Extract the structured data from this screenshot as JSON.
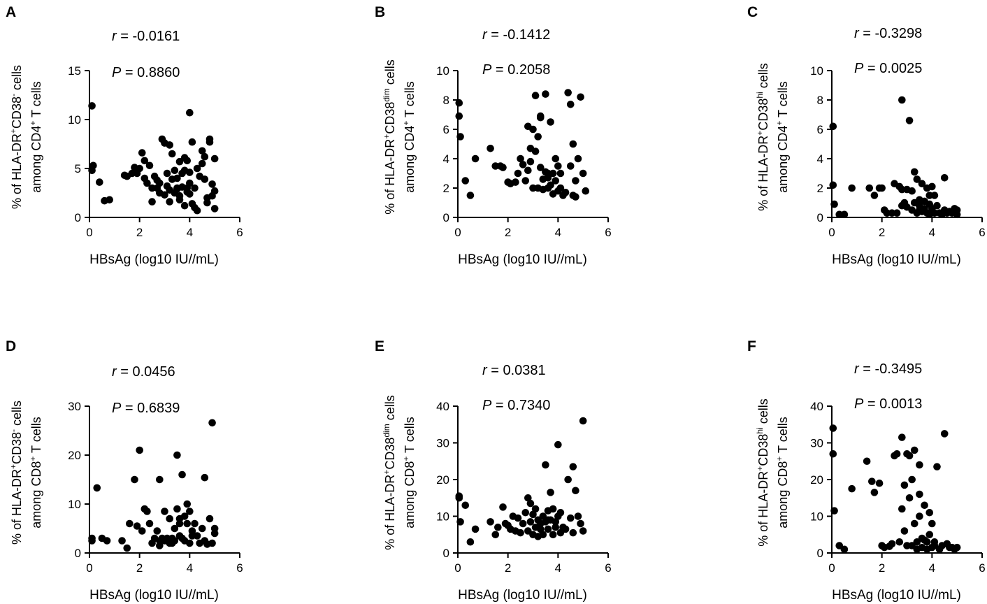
{
  "chart_data": [
    {
      "type": "scatter",
      "panel": "A",
      "r_label": "r",
      "r_value": "-0.0161",
      "p_label": "P",
      "p_value": "0.8860",
      "ylabel_line1": "% of HLA-DR",
      "ylabel_sup1": "+",
      "ylabel_mid": "CD38",
      "ylabel_sup2": "-",
      "ylabel_tail": " cells",
      "ylabel_line2": "among CD4",
      "ylabel_sup3": "+",
      "ylabel_line2_tail": " T cells",
      "xlabel": "HBsAg (log10 IU//mL)",
      "xlim": [
        0,
        6
      ],
      "ylim": [
        0,
        15
      ],
      "xticks": [
        "0",
        "2",
        "4",
        "6"
      ],
      "yticks": [
        "0",
        "5",
        "10",
        "15"
      ],
      "x": [
        0.1,
        0.1,
        0.15,
        0.4,
        0.6,
        0.8,
        1.4,
        1.5,
        1.7,
        1.8,
        1.9,
        2.0,
        2.1,
        2.2,
        2.3,
        2.4,
        2.5,
        2.5,
        2.6,
        2.7,
        2.7,
        2.8,
        2.8,
        2.9,
        3.0,
        3.0,
        3.1,
        3.1,
        3.2,
        3.2,
        3.2,
        3.3,
        3.3,
        3.4,
        3.4,
        3.5,
        3.5,
        3.6,
        3.6,
        3.6,
        3.7,
        3.7,
        3.8,
        3.8,
        3.8,
        3.9,
        3.9,
        4.0,
        4.0,
        4.0,
        4.0,
        4.1,
        4.1,
        4.2,
        4.2,
        4.3,
        4.4,
        4.5,
        4.5,
        4.6,
        4.6,
        4.7,
        4.7,
        4.8,
        4.8,
        4.9,
        4.9,
        5.0,
        5.0,
        5.0,
        4.3,
        3.9,
        3.5,
        2.2
      ],
      "y": [
        11.4,
        4.8,
        5.3,
        3.6,
        1.7,
        1.8,
        4.3,
        4.2,
        4.5,
        5.1,
        4.5,
        5.0,
        6.6,
        4.0,
        3.5,
        5.3,
        3.0,
        1.6,
        4.2,
        3.8,
        3.0,
        3.5,
        2.5,
        8.0,
        2.3,
        7.6,
        4.5,
        3.2,
        7.4,
        2.8,
        1.6,
        6.5,
        3.9,
        2.5,
        4.8,
        4.0,
        3.0,
        1.8,
        5.7,
        2.2,
        4.5,
        3.1,
        6.1,
        4.8,
        1.2,
        3.0,
        5.8,
        10.7,
        4.6,
        3.5,
        2.4,
        7.7,
        1.4,
        3.0,
        1.0,
        0.7,
        4.2,
        6.8,
        5.5,
        6.2,
        3.9,
        1.5,
        2.0,
        8.0,
        7.7,
        3.4,
        2.2,
        2.7,
        6.0,
        0.9,
        5.0,
        2.6,
        2.9,
        5.8
      ]
    },
    {
      "type": "scatter",
      "panel": "B",
      "r_label": "r",
      "r_value": "-0.1412",
      "p_label": "P",
      "p_value": "0.2058",
      "ylabel_line1": "% of HLA-DR",
      "ylabel_sup1": "+",
      "ylabel_mid": "CD38",
      "ylabel_sup2": "dim",
      "ylabel_tail": " cells",
      "ylabel_line2": "among CD4",
      "ylabel_sup3": "+",
      "ylabel_line2_tail": " T cells",
      "xlabel": "HBsAg (log10 IU//mL)",
      "xlim": [
        0,
        6
      ],
      "ylim": [
        0,
        10
      ],
      "xticks": [
        "0",
        "2",
        "4",
        "6"
      ],
      "yticks": [
        "0",
        "2",
        "4",
        "6",
        "8",
        "10"
      ],
      "x": [
        0.05,
        0.05,
        0.1,
        0.3,
        0.5,
        0.7,
        1.3,
        1.5,
        1.7,
        1.8,
        2.0,
        2.1,
        2.3,
        2.4,
        2.5,
        2.6,
        2.7,
        2.8,
        2.8,
        2.9,
        3.0,
        3.0,
        3.1,
        3.1,
        3.2,
        3.2,
        3.3,
        3.3,
        3.4,
        3.4,
        3.5,
        3.5,
        3.6,
        3.6,
        3.7,
        3.7,
        3.8,
        3.8,
        3.9,
        3.9,
        4.0,
        4.0,
        4.1,
        4.1,
        4.2,
        4.3,
        4.4,
        4.5,
        4.5,
        4.6,
        4.6,
        4.7,
        4.7,
        4.8,
        4.9,
        5.0,
        5.1,
        3.3,
        3.6,
        2.9
      ],
      "y": [
        7.8,
        6.9,
        5.5,
        2.5,
        1.5,
        4.0,
        4.7,
        3.5,
        3.5,
        3.4,
        2.4,
        2.3,
        2.4,
        3.0,
        4.0,
        3.6,
        2.5,
        6.2,
        3.2,
        3.8,
        2.0,
        6.0,
        8.3,
        4.5,
        2.0,
        5.5,
        6.8,
        3.4,
        2.6,
        1.9,
        8.4,
        3.1,
        2.7,
        2.0,
        6.5,
        2.2,
        3.0,
        1.6,
        4.0,
        2.5,
        3.5,
        1.8,
        2.0,
        3.0,
        1.5,
        1.7,
        8.5,
        7.7,
        3.5,
        5.0,
        1.5,
        1.4,
        2.5,
        4.0,
        8.2,
        3.0,
        1.8,
        6.9,
        3.0,
        4.7
      ]
    },
    {
      "type": "scatter",
      "panel": "C",
      "r_label": "r",
      "r_value": "-0.3298",
      "p_label": "P",
      "p_value": "0.0025",
      "ylabel_line1": "% of HLA-DR",
      "ylabel_sup1": "+",
      "ylabel_mid": "CD38",
      "ylabel_sup2": "hi",
      "ylabel_tail": " cells",
      "ylabel_line2": "among CD4",
      "ylabel_sup3": "+",
      "ylabel_line2_tail": " T cells",
      "xlabel": "HBsAg (log10 IU//mL)",
      "xlim": [
        0,
        6
      ],
      "ylim": [
        0,
        10
      ],
      "xticks": [
        "0",
        "2",
        "4",
        "6"
      ],
      "yticks": [
        "0",
        "2",
        "4",
        "6",
        "8",
        "10"
      ],
      "x": [
        0.05,
        0.05,
        0.1,
        0.3,
        0.5,
        0.8,
        1.5,
        1.7,
        1.9,
        2.0,
        2.1,
        2.2,
        2.4,
        2.5,
        2.6,
        2.7,
        2.8,
        2.8,
        2.9,
        3.0,
        3.0,
        3.1,
        3.2,
        3.2,
        3.3,
        3.3,
        3.4,
        3.4,
        3.5,
        3.5,
        3.6,
        3.6,
        3.7,
        3.7,
        3.8,
        3.8,
        3.9,
        3.9,
        4.0,
        4.0,
        4.1,
        4.1,
        4.2,
        4.3,
        4.4,
        4.5,
        4.5,
        4.6,
        4.7,
        4.8,
        4.9,
        5.0,
        5.0,
        2.8,
        3.5,
        3.9
      ],
      "y": [
        6.2,
        2.2,
        0.9,
        0.2,
        0.2,
        2.0,
        2.0,
        1.5,
        2.0,
        2.0,
        0.5,
        0.3,
        0.3,
        2.3,
        0.3,
        2.1,
        8.0,
        0.8,
        1.0,
        1.9,
        0.7,
        6.6,
        1.8,
        0.5,
        3.1,
        1.0,
        2.6,
        0.3,
        0.8,
        0.5,
        2.3,
        0.4,
        1.1,
        0.6,
        2.0,
        0.3,
        1.5,
        0.2,
        2.1,
        0.6,
        1.5,
        0.3,
        0.8,
        0.3,
        0.2,
        2.7,
        0.5,
        0.3,
        0.4,
        0.3,
        0.6,
        0.5,
        0.2,
        1.9,
        1.2,
        0.9
      ]
    },
    {
      "type": "scatter",
      "panel": "D",
      "r_label": "r",
      "r_value": "0.0456",
      "p_label": "P",
      "p_value": "0.6839",
      "ylabel_line1": "% of HLA-DR",
      "ylabel_sup1": "+",
      "ylabel_mid": "CD38",
      "ylabel_sup2": "-",
      "ylabel_tail": " cells",
      "ylabel_line2": "among CD8",
      "ylabel_sup3": "+",
      "ylabel_line2_tail": " T cells",
      "xlabel": "HBsAg (log10 IU//mL)",
      "xlim": [
        0,
        6
      ],
      "ylim": [
        0,
        30
      ],
      "xticks": [
        "0",
        "2",
        "4",
        "6"
      ],
      "yticks": [
        "0",
        "10",
        "20",
        "30"
      ],
      "x": [
        0.1,
        0.1,
        0.3,
        0.5,
        0.7,
        1.3,
        1.5,
        1.6,
        1.8,
        1.9,
        2.0,
        2.1,
        2.2,
        2.3,
        2.4,
        2.5,
        2.6,
        2.7,
        2.8,
        2.8,
        2.9,
        3.0,
        3.0,
        3.1,
        3.2,
        3.2,
        3.3,
        3.3,
        3.4,
        3.4,
        3.5,
        3.5,
        3.6,
        3.6,
        3.7,
        3.7,
        3.8,
        3.8,
        3.9,
        3.9,
        4.0,
        4.0,
        4.1,
        4.1,
        4.2,
        4.3,
        4.4,
        4.5,
        4.6,
        4.6,
        4.7,
        4.8,
        4.9,
        5.0,
        5.0,
        4.9,
        3.6,
        2.8
      ],
      "y": [
        2.5,
        3.0,
        13.3,
        3.0,
        2.5,
        2.5,
        1.0,
        6.0,
        15.0,
        5.5,
        21.0,
        4.5,
        9.0,
        8.5,
        6.0,
        2.0,
        3.0,
        4.5,
        15.0,
        1.5,
        3.0,
        8.5,
        2.5,
        3.0,
        2.0,
        7.0,
        3.0,
        2.0,
        5.0,
        2.5,
        20.0,
        9.0,
        3.5,
        7.0,
        16.0,
        3.0,
        7.5,
        2.5,
        10.0,
        6.0,
        8.5,
        2.0,
        4.5,
        3.5,
        6.0,
        3.5,
        2.0,
        5.0,
        15.4,
        2.5,
        1.8,
        7.0,
        26.6,
        4.0,
        5.0,
        2.0,
        6.0,
        2.5
      ]
    },
    {
      "type": "scatter",
      "panel": "E",
      "r_label": "r",
      "r_value": "0.0381",
      "p_label": "P",
      "p_value": "0.7340",
      "ylabel_line1": "% of HLA-DR",
      "ylabel_sup1": "+",
      "ylabel_mid": "CD38",
      "ylabel_sup2": "dim",
      "ylabel_tail": " cells",
      "ylabel_line2": "among CD8",
      "ylabel_sup3": "+",
      "ylabel_line2_tail": " T cells",
      "xlabel": "HBsAg (log10 IU//mL)",
      "xlim": [
        0,
        6
      ],
      "ylim": [
        0,
        40
      ],
      "xticks": [
        "0",
        "2",
        "4",
        "6"
      ],
      "yticks": [
        "0",
        "10",
        "20",
        "30",
        "40"
      ],
      "x": [
        0.05,
        0.1,
        0.3,
        0.5,
        0.7,
        1.3,
        1.5,
        1.6,
        1.8,
        1.9,
        2.0,
        2.1,
        2.2,
        2.3,
        2.4,
        2.5,
        2.6,
        2.7,
        2.8,
        2.8,
        2.9,
        3.0,
        3.0,
        3.1,
        3.1,
        3.2,
        3.2,
        3.3,
        3.3,
        3.4,
        3.4,
        3.5,
        3.5,
        3.6,
        3.6,
        3.7,
        3.7,
        3.8,
        3.8,
        3.9,
        3.9,
        4.0,
        4.0,
        4.1,
        4.1,
        4.2,
        4.3,
        4.4,
        4.5,
        4.6,
        4.6,
        4.7,
        4.8,
        4.9,
        5.0,
        5.0,
        3.6,
        2.9,
        0.05
      ],
      "y": [
        15.5,
        8.5,
        13.0,
        3.0,
        6.5,
        8.5,
        5.0,
        7.0,
        12.5,
        8.0,
        7.5,
        6.5,
        10.0,
        6.0,
        9.5,
        5.5,
        8.0,
        11.0,
        15.0,
        6.0,
        8.5,
        10.5,
        5.0,
        7.0,
        12.0,
        4.5,
        9.0,
        8.0,
        6.5,
        10.0,
        5.0,
        8.5,
        24.0,
        11.5,
        6.5,
        16.5,
        9.0,
        5.0,
        12.0,
        7.0,
        8.5,
        29.5,
        10.0,
        5.5,
        11.0,
        7.0,
        6.5,
        20.0,
        9.5,
        23.5,
        5.5,
        17.0,
        10.0,
        8.0,
        36.0,
        6.0,
        9.0,
        13.5,
        15.0
      ]
    },
    {
      "type": "scatter",
      "panel": "F",
      "r_label": "r",
      "r_value": "-0.3495",
      "p_label": "P",
      "p_value": "0.0013",
      "ylabel_line1": "% of HLA-DR",
      "ylabel_sup1": "+",
      "ylabel_mid": "CD38",
      "ylabel_sup2": "hi",
      "ylabel_tail": " cells",
      "ylabel_line2": "among CD8",
      "ylabel_sup3": "+",
      "ylabel_line2_tail": " T cells",
      "xlabel": "HBsAg (log10 IU//mL)",
      "xlim": [
        0,
        6
      ],
      "ylim": [
        0,
        40
      ],
      "xticks": [
        "0",
        "2",
        "4",
        "6"
      ],
      "yticks": [
        "0",
        "10",
        "20",
        "30",
        "40"
      ],
      "x": [
        0.05,
        0.05,
        0.1,
        0.3,
        0.5,
        0.8,
        1.4,
        1.6,
        1.7,
        1.9,
        2.0,
        2.1,
        2.3,
        2.4,
        2.5,
        2.6,
        2.7,
        2.8,
        2.8,
        2.9,
        3.0,
        3.0,
        3.1,
        3.1,
        3.2,
        3.2,
        3.3,
        3.3,
        3.4,
        3.4,
        3.5,
        3.5,
        3.6,
        3.6,
        3.7,
        3.7,
        3.8,
        3.8,
        3.9,
        3.9,
        4.0,
        4.0,
        4.1,
        4.2,
        4.3,
        4.4,
        4.5,
        4.6,
        4.7,
        4.8,
        4.9,
        5.0,
        2.9,
        3.5,
        4.1
      ],
      "y": [
        34.0,
        27.0,
        11.5,
        2.0,
        1.0,
        17.5,
        25.0,
        19.5,
        16.5,
        19.0,
        2.0,
        1.5,
        1.8,
        2.5,
        26.5,
        27.0,
        3.0,
        31.5,
        12.0,
        6.0,
        27.0,
        2.0,
        26.5,
        15.0,
        2.0,
        20.0,
        28.0,
        8.0,
        1.0,
        3.0,
        24.0,
        16.0,
        4.0,
        1.5,
        13.0,
        3.5,
        3.0,
        1.0,
        11.0,
        5.0,
        8.0,
        1.5,
        3.0,
        23.5,
        1.0,
        2.0,
        32.5,
        2.5,
        1.5,
        1.5,
        1.0,
        1.5,
        18.5,
        10.0,
        2.0
      ]
    }
  ]
}
